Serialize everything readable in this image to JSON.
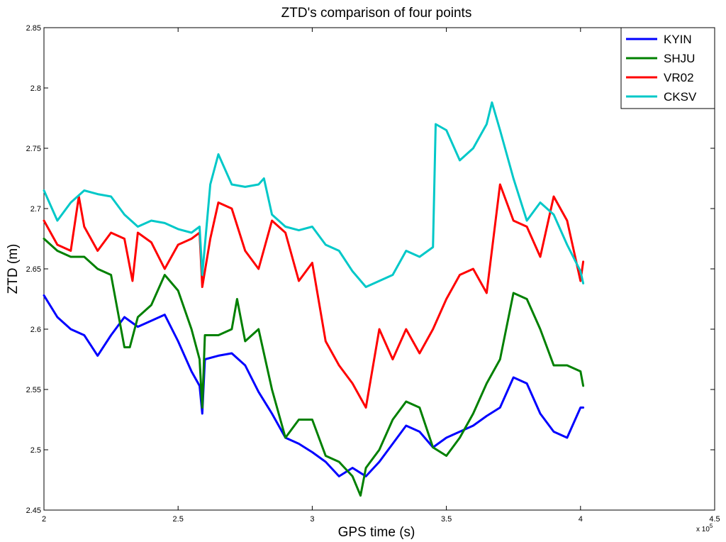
{
  "chart_data": {
    "type": "line",
    "title": "ZTD's comparison of four points",
    "xlabel": "GPS time (s)",
    "ylabel": "ZTD (m)",
    "x_exponent_label": "x 10",
    "x_exponent_power": "5",
    "xlim": [
      2,
      4.5
    ],
    "ylim": [
      2.45,
      2.85
    ],
    "xticks": [
      2,
      2.5,
      3,
      3.5,
      4,
      4.5
    ],
    "xtick_labels": [
      "2",
      "2.5",
      "3",
      "3.5",
      "4",
      "4.5"
    ],
    "yticks": [
      2.45,
      2.5,
      2.55,
      2.6,
      2.65,
      2.7,
      2.75,
      2.8,
      2.85
    ],
    "ytick_labels": [
      "2.45",
      "2.5",
      "2.55",
      "2.6",
      "2.65",
      "2.7",
      "2.75",
      "2.8",
      "2.85"
    ],
    "grid": false,
    "legend_position": "top-right",
    "series": [
      {
        "name": "KYIN",
        "color": "#0000ff",
        "x": [
          2.0,
          2.05,
          2.1,
          2.15,
          2.2,
          2.25,
          2.3,
          2.35,
          2.4,
          2.45,
          2.5,
          2.55,
          2.58,
          2.59,
          2.6,
          2.65,
          2.7,
          2.75,
          2.8,
          2.85,
          2.9,
          2.95,
          3.0,
          3.05,
          3.1,
          3.15,
          3.2,
          3.25,
          3.3,
          3.35,
          3.4,
          3.45,
          3.5,
          3.55,
          3.6,
          3.65,
          3.7,
          3.75,
          3.8,
          3.85,
          3.9,
          3.95,
          4.0,
          4.01
        ],
        "y": [
          2.628,
          2.61,
          2.6,
          2.595,
          2.578,
          2.595,
          2.61,
          2.602,
          2.607,
          2.612,
          2.59,
          2.565,
          2.553,
          2.53,
          2.575,
          2.578,
          2.58,
          2.57,
          2.548,
          2.53,
          2.51,
          2.505,
          2.498,
          2.49,
          2.478,
          2.485,
          2.478,
          2.49,
          2.505,
          2.52,
          2.515,
          2.502,
          2.51,
          2.515,
          2.52,
          2.528,
          2.535,
          2.56,
          2.555,
          2.53,
          2.515,
          2.51,
          2.535,
          2.535
        ]
      },
      {
        "name": "SHJU",
        "color": "#008000",
        "x": [
          2.0,
          2.05,
          2.1,
          2.15,
          2.2,
          2.25,
          2.3,
          2.32,
          2.35,
          2.4,
          2.45,
          2.5,
          2.55,
          2.58,
          2.59,
          2.6,
          2.65,
          2.7,
          2.72,
          2.75,
          2.8,
          2.85,
          2.9,
          2.95,
          3.0,
          3.05,
          3.1,
          3.15,
          3.18,
          3.2,
          3.25,
          3.3,
          3.35,
          3.4,
          3.45,
          3.5,
          3.55,
          3.6,
          3.65,
          3.7,
          3.75,
          3.8,
          3.85,
          3.9,
          3.95,
          4.0,
          4.01
        ],
        "y": [
          2.675,
          2.665,
          2.66,
          2.66,
          2.65,
          2.645,
          2.585,
          2.585,
          2.61,
          2.62,
          2.645,
          2.632,
          2.6,
          2.575,
          2.535,
          2.595,
          2.595,
          2.6,
          2.625,
          2.59,
          2.6,
          2.55,
          2.51,
          2.525,
          2.525,
          2.495,
          2.49,
          2.478,
          2.462,
          2.485,
          2.5,
          2.525,
          2.54,
          2.535,
          2.502,
          2.495,
          2.51,
          2.53,
          2.555,
          2.575,
          2.63,
          2.625,
          2.6,
          2.57,
          2.57,
          2.565,
          2.553
        ]
      },
      {
        "name": "VR02",
        "color": "#ff0000",
        "x": [
          2.0,
          2.05,
          2.1,
          2.13,
          2.15,
          2.2,
          2.25,
          2.3,
          2.33,
          2.35,
          2.4,
          2.45,
          2.5,
          2.55,
          2.58,
          2.59,
          2.62,
          2.65,
          2.7,
          2.75,
          2.8,
          2.85,
          2.9,
          2.95,
          3.0,
          3.05,
          3.1,
          3.15,
          3.2,
          3.25,
          3.3,
          3.35,
          3.4,
          3.45,
          3.5,
          3.55,
          3.6,
          3.65,
          3.7,
          3.75,
          3.8,
          3.85,
          3.9,
          3.95,
          4.0,
          4.01
        ],
        "y": [
          2.69,
          2.67,
          2.665,
          2.71,
          2.685,
          2.665,
          2.68,
          2.675,
          2.64,
          2.68,
          2.672,
          2.65,
          2.67,
          2.675,
          2.68,
          2.635,
          2.675,
          2.705,
          2.7,
          2.665,
          2.65,
          2.69,
          2.68,
          2.64,
          2.655,
          2.59,
          2.57,
          2.555,
          2.535,
          2.6,
          2.575,
          2.6,
          2.58,
          2.6,
          2.625,
          2.645,
          2.65,
          2.63,
          2.72,
          2.69,
          2.685,
          2.66,
          2.71,
          2.69,
          2.64,
          2.656
        ]
      },
      {
        "name": "CKSV",
        "color": "#00c8c8",
        "x": [
          2.0,
          2.05,
          2.1,
          2.15,
          2.2,
          2.25,
          2.3,
          2.35,
          2.4,
          2.45,
          2.5,
          2.55,
          2.58,
          2.59,
          2.62,
          2.65,
          2.7,
          2.75,
          2.8,
          2.82,
          2.85,
          2.9,
          2.95,
          3.0,
          3.05,
          3.1,
          3.15,
          3.2,
          3.25,
          3.3,
          3.35,
          3.4,
          3.45,
          3.46,
          3.5,
          3.55,
          3.6,
          3.65,
          3.67,
          3.7,
          3.75,
          3.8,
          3.85,
          3.9,
          3.95,
          4.0,
          4.01
        ],
        "y": [
          2.715,
          2.69,
          2.705,
          2.715,
          2.712,
          2.71,
          2.695,
          2.685,
          2.69,
          2.688,
          2.683,
          2.68,
          2.685,
          2.645,
          2.72,
          2.745,
          2.72,
          2.718,
          2.72,
          2.725,
          2.695,
          2.685,
          2.682,
          2.685,
          2.67,
          2.665,
          2.648,
          2.635,
          2.64,
          2.645,
          2.665,
          2.66,
          2.668,
          2.77,
          2.765,
          2.74,
          2.75,
          2.77,
          2.788,
          2.765,
          2.725,
          2.69,
          2.705,
          2.695,
          2.67,
          2.648,
          2.638
        ]
      }
    ]
  }
}
